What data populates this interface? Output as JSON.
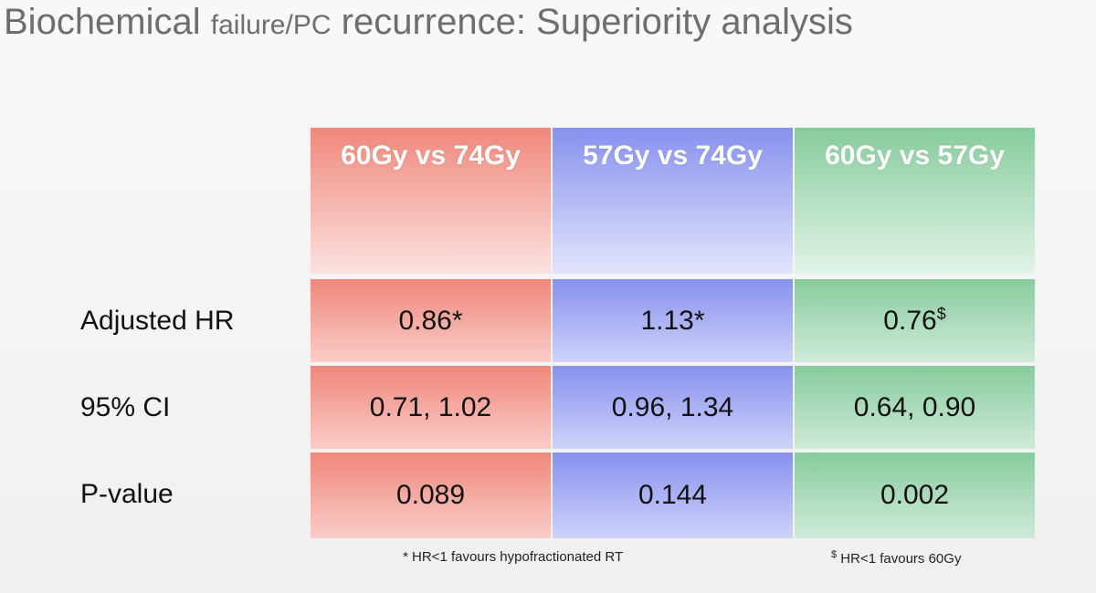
{
  "header": {
    "title_parts": [
      "Biochemical",
      "failure/PC",
      "recurrence: Superiority analysis"
    ]
  },
  "table": {
    "columns": [
      "60Gy vs 74Gy",
      "57Gy vs 74Gy",
      "60Gy vs 57Gy"
    ],
    "rows": [
      {
        "label": "Adjusted HR",
        "cells": [
          "0.86",
          "1.13",
          "0.76"
        ],
        "markers": [
          "*",
          "*",
          "$"
        ]
      },
      {
        "label": "95% CI",
        "cells": [
          "0.71, 1.02",
          "0.96, 1.34",
          "0.64, 0.90"
        ]
      },
      {
        "label": "P-value",
        "cells": [
          "0.089",
          "0.144",
          "0.002"
        ]
      }
    ]
  },
  "footnotes": [
    {
      "marker": "*",
      "text": "HR<1 favours hypofractionated RT"
    },
    {
      "marker": "$",
      "text": "HR<1 favours 60Gy"
    }
  ]
}
